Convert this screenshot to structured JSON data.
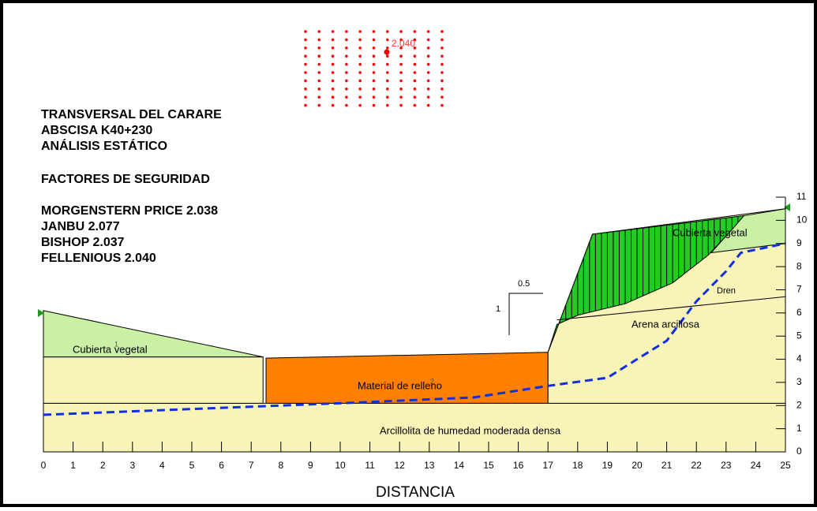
{
  "header": {
    "lines": [
      "TRANSVERSAL DEL CARARE",
      "ABSCISA K40+230",
      "ANÁLISIS ESTÁTICO"
    ]
  },
  "factors": {
    "title": "FACTORES DE SEGURIDAD",
    "methods": [
      "MORGENSTERN PRICE 2.038",
      "JANBU 2.077",
      "BISHOP  2.037",
      "FELLENIOUS  2.040"
    ]
  },
  "grid_label": "2.040",
  "materials": {
    "cubierta_left": "Cubierta vegetal",
    "cubierta_right": "Cubierta vegetal",
    "relleno": "Material de relleno",
    "arena": "Arena arcillosa",
    "arcillolita": "Arcillolita de humedad moderada densa",
    "dren": "Dren",
    "id1": "1",
    "id2": "2"
  },
  "slope_scale": {
    "h": "0.5",
    "v": "1"
  },
  "x_axis": {
    "label": "DISTANCIA",
    "ticks": [
      0,
      1,
      2,
      3,
      4,
      5,
      6,
      7,
      8,
      9,
      10,
      11,
      12,
      13,
      14,
      15,
      16,
      17,
      18,
      19,
      20,
      21,
      22,
      23,
      24,
      25
    ]
  },
  "y_axis": {
    "ticks": [
      0,
      1,
      2,
      3,
      4,
      5,
      6,
      7,
      8,
      9,
      10,
      11
    ]
  }
}
